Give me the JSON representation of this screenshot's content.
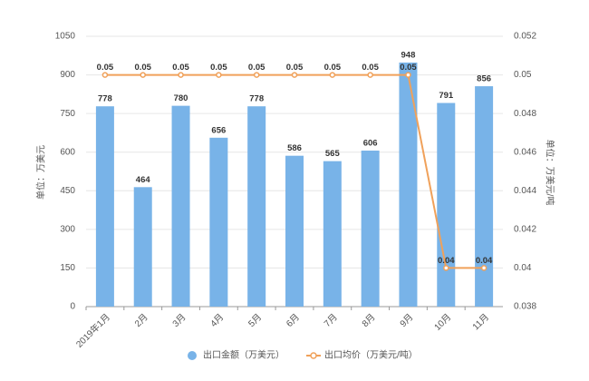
{
  "chart_data": {
    "type": "bar",
    "y_label": "单位：万美元",
    "y2_label": "单位：万美元/吨",
    "categories": [
      "2019年1月",
      "2月",
      "3月",
      "4月",
      "5月",
      "6月",
      "7月",
      "8月",
      "9月",
      "10月",
      "11月"
    ],
    "series": [
      {
        "name": "出口金额（万美元）",
        "type": "bar",
        "color": "#78b3e8",
        "values": [
          778,
          464,
          780,
          656,
          778,
          586,
          565,
          606,
          948,
          791,
          856
        ]
      },
      {
        "name": "出口均价（万美元/吨）",
        "type": "line",
        "axis": "y2",
        "color": "#f0a15a",
        "values": [
          0.05,
          0.05,
          0.05,
          0.05,
          0.05,
          0.05,
          0.05,
          0.05,
          0.05,
          0.04,
          0.04
        ]
      }
    ],
    "ylim": [
      0,
      1050
    ],
    "yticks": [
      0,
      150,
      300,
      450,
      600,
      750,
      900,
      1050
    ],
    "y2lim": [
      0.038,
      0.052
    ],
    "y2ticks": [
      0.038,
      0.04,
      0.042,
      0.044,
      0.046,
      0.048,
      0.05,
      0.052
    ],
    "grid": true,
    "legend": "bottom"
  }
}
